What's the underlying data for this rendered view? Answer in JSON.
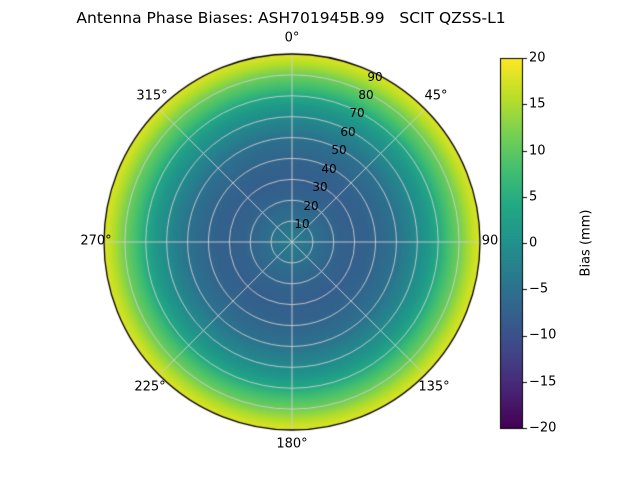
{
  "chart_data": {
    "type": "heatmap",
    "projection": "polar",
    "title": "Antenna Phase Biases: ASH701945B.99   SCIT QZSS-L1",
    "angular_labels": [
      "0°",
      "45°",
      "90",
      "135°",
      "180°",
      "225°",
      "270°",
      "315°"
    ],
    "azimuth_grid_deg": [
      0,
      45,
      90,
      135,
      180,
      225,
      270,
      315
    ],
    "radial_tick_labels": [
      "10",
      "20",
      "30",
      "40",
      "50",
      "60",
      "70",
      "80",
      "90"
    ],
    "radial_tick_values": [
      10,
      20,
      30,
      40,
      50,
      60,
      70,
      80,
      90
    ],
    "radial_range": [
      0,
      90
    ],
    "grid_color": "#cfcfcf",
    "colormap_name": "viridis",
    "colormap_stops": [
      [
        0.0,
        "#440154"
      ],
      [
        0.1,
        "#482475"
      ],
      [
        0.2,
        "#414487"
      ],
      [
        0.3,
        "#355f8d"
      ],
      [
        0.4,
        "#2a788e"
      ],
      [
        0.5,
        "#21918c"
      ],
      [
        0.6,
        "#22a884"
      ],
      [
        0.7,
        "#44bf70"
      ],
      [
        0.8,
        "#7ad151"
      ],
      [
        0.9,
        "#bddf26"
      ],
      [
        1.0,
        "#fde725"
      ]
    ],
    "colorbar": {
      "label": "Bias (mm)",
      "min": -20,
      "max": 20,
      "tick_labels": [
        "20",
        "15",
        "10",
        "5",
        "0",
        "−5",
        "−10",
        "−15",
        "−20"
      ],
      "tick_values": [
        20,
        15,
        10,
        5,
        0,
        -5,
        -10,
        -15,
        -20
      ]
    },
    "profile": {
      "zenith_deg": [
        0,
        10,
        20,
        30,
        40,
        50,
        60,
        65,
        70,
        75,
        80,
        85,
        90
      ],
      "bias_mm": [
        -3,
        -5,
        -7,
        -8,
        -7,
        -5,
        -1,
        1,
        4,
        8,
        11,
        15,
        18
      ]
    }
  }
}
